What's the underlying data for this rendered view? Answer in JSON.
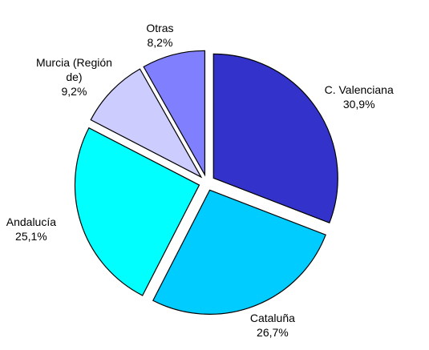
{
  "chart_data": {
    "type": "pie",
    "categories": [
      "C. Valenciana",
      "Cataluña",
      "Andalucía",
      "Murcia (Región de)",
      "Otras"
    ],
    "values": [
      30.9,
      26.7,
      25.1,
      9.2,
      8.2
    ],
    "value_labels": [
      "30,9%",
      "26,7%",
      "25,1%",
      "9,2%",
      "8,2%"
    ],
    "colors": [
      "#3333cc",
      "#00ccff",
      "#00ffff",
      "#ccccff",
      "#8080ff"
    ]
  }
}
